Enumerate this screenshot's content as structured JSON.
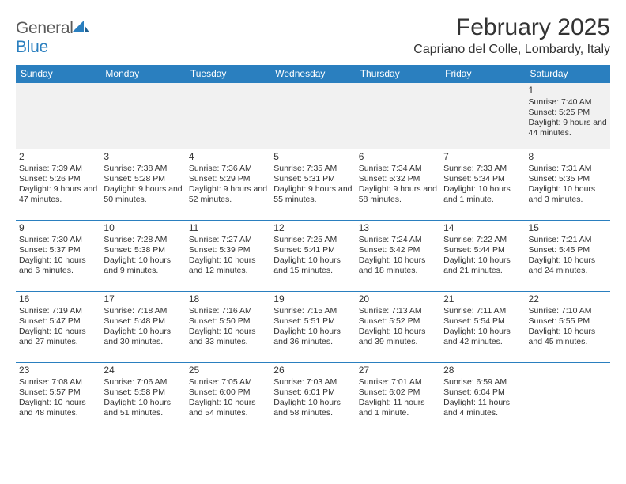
{
  "brand": {
    "name1": "General",
    "name2": "Blue"
  },
  "title": "February 2025",
  "location": "Capriano del Colle, Lombardy, Italy",
  "colors": {
    "header_bg": "#2a7fbf",
    "border": "#2a7fbf",
    "text": "#333333",
    "muted_row": "#f1f1f1"
  },
  "day_headers": [
    "Sunday",
    "Monday",
    "Tuesday",
    "Wednesday",
    "Thursday",
    "Friday",
    "Saturday"
  ],
  "weeks": [
    [
      null,
      null,
      null,
      null,
      null,
      null,
      {
        "n": "1",
        "sr": "7:40 AM",
        "ss": "5:25 PM",
        "dl": "9 hours and 44 minutes."
      }
    ],
    [
      {
        "n": "2",
        "sr": "7:39 AM",
        "ss": "5:26 PM",
        "dl": "9 hours and 47 minutes."
      },
      {
        "n": "3",
        "sr": "7:38 AM",
        "ss": "5:28 PM",
        "dl": "9 hours and 50 minutes."
      },
      {
        "n": "4",
        "sr": "7:36 AM",
        "ss": "5:29 PM",
        "dl": "9 hours and 52 minutes."
      },
      {
        "n": "5",
        "sr": "7:35 AM",
        "ss": "5:31 PM",
        "dl": "9 hours and 55 minutes."
      },
      {
        "n": "6",
        "sr": "7:34 AM",
        "ss": "5:32 PM",
        "dl": "9 hours and 58 minutes."
      },
      {
        "n": "7",
        "sr": "7:33 AM",
        "ss": "5:34 PM",
        "dl": "10 hours and 1 minute."
      },
      {
        "n": "8",
        "sr": "7:31 AM",
        "ss": "5:35 PM",
        "dl": "10 hours and 3 minutes."
      }
    ],
    [
      {
        "n": "9",
        "sr": "7:30 AM",
        "ss": "5:37 PM",
        "dl": "10 hours and 6 minutes."
      },
      {
        "n": "10",
        "sr": "7:28 AM",
        "ss": "5:38 PM",
        "dl": "10 hours and 9 minutes."
      },
      {
        "n": "11",
        "sr": "7:27 AM",
        "ss": "5:39 PM",
        "dl": "10 hours and 12 minutes."
      },
      {
        "n": "12",
        "sr": "7:25 AM",
        "ss": "5:41 PM",
        "dl": "10 hours and 15 minutes."
      },
      {
        "n": "13",
        "sr": "7:24 AM",
        "ss": "5:42 PM",
        "dl": "10 hours and 18 minutes."
      },
      {
        "n": "14",
        "sr": "7:22 AM",
        "ss": "5:44 PM",
        "dl": "10 hours and 21 minutes."
      },
      {
        "n": "15",
        "sr": "7:21 AM",
        "ss": "5:45 PM",
        "dl": "10 hours and 24 minutes."
      }
    ],
    [
      {
        "n": "16",
        "sr": "7:19 AM",
        "ss": "5:47 PM",
        "dl": "10 hours and 27 minutes."
      },
      {
        "n": "17",
        "sr": "7:18 AM",
        "ss": "5:48 PM",
        "dl": "10 hours and 30 minutes."
      },
      {
        "n": "18",
        "sr": "7:16 AM",
        "ss": "5:50 PM",
        "dl": "10 hours and 33 minutes."
      },
      {
        "n": "19",
        "sr": "7:15 AM",
        "ss": "5:51 PM",
        "dl": "10 hours and 36 minutes."
      },
      {
        "n": "20",
        "sr": "7:13 AM",
        "ss": "5:52 PM",
        "dl": "10 hours and 39 minutes."
      },
      {
        "n": "21",
        "sr": "7:11 AM",
        "ss": "5:54 PM",
        "dl": "10 hours and 42 minutes."
      },
      {
        "n": "22",
        "sr": "7:10 AM",
        "ss": "5:55 PM",
        "dl": "10 hours and 45 minutes."
      }
    ],
    [
      {
        "n": "23",
        "sr": "7:08 AM",
        "ss": "5:57 PM",
        "dl": "10 hours and 48 minutes."
      },
      {
        "n": "24",
        "sr": "7:06 AM",
        "ss": "5:58 PM",
        "dl": "10 hours and 51 minutes."
      },
      {
        "n": "25",
        "sr": "7:05 AM",
        "ss": "6:00 PM",
        "dl": "10 hours and 54 minutes."
      },
      {
        "n": "26",
        "sr": "7:03 AM",
        "ss": "6:01 PM",
        "dl": "10 hours and 58 minutes."
      },
      {
        "n": "27",
        "sr": "7:01 AM",
        "ss": "6:02 PM",
        "dl": "11 hours and 1 minute."
      },
      {
        "n": "28",
        "sr": "6:59 AM",
        "ss": "6:04 PM",
        "dl": "11 hours and 4 minutes."
      },
      null
    ]
  ],
  "labels": {
    "sunrise": "Sunrise:",
    "sunset": "Sunset:",
    "daylight": "Daylight:"
  }
}
